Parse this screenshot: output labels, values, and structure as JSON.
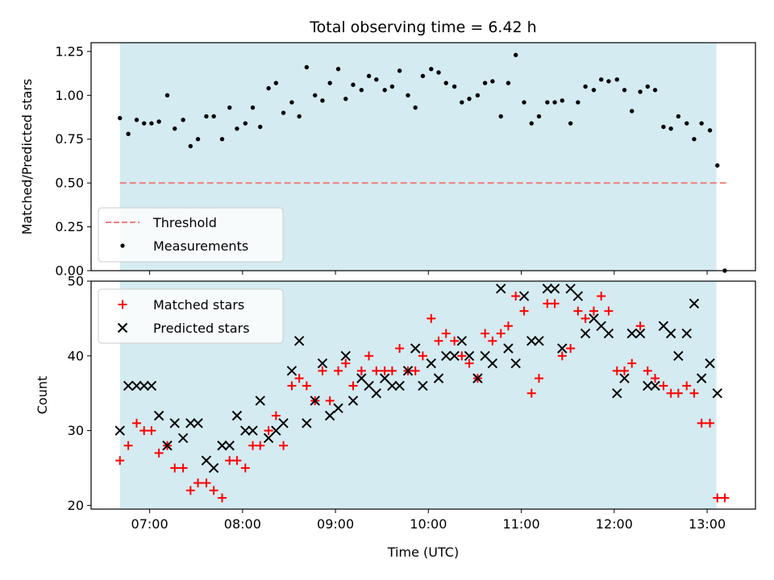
{
  "chart_data": {
    "type": "scatter",
    "title": "Total observing time = 6.42 h",
    "xlabel": "Time (UTC)",
    "x_ticks": [
      "07:00",
      "08:00",
      "09:00",
      "10:00",
      "11:00",
      "12:00",
      "13:00"
    ],
    "x_range_hours": [
      6.37,
      13.52
    ],
    "observing_window_hours": [
      6.68,
      13.1
    ],
    "shading_color": "#d4ebf1",
    "panels": [
      {
        "ylabel": "Matched/Predicted stars",
        "ylim": [
          0,
          1.3
        ],
        "y_ticks": [
          0.0,
          0.25,
          0.5,
          0.75,
          1.0,
          1.25
        ],
        "y_tick_labels": [
          "0.00",
          "0.25",
          "0.50",
          "0.75",
          "1.00",
          "1.25"
        ],
        "legend_position": "lower-left",
        "threshold": {
          "name": "Threshold",
          "value": 0.5,
          "color": "#f08080"
        },
        "series": [
          {
            "name": "Measurements",
            "marker": "dot",
            "color": "#000000",
            "x": [
              6.68,
              6.77,
              6.86,
              6.94,
              7.02,
              7.1,
              7.19,
              7.27,
              7.36,
              7.44,
              7.52,
              7.61,
              7.69,
              7.78,
              7.86,
              7.94,
              8.03,
              8.11,
              8.19,
              8.28,
              8.36,
              8.44,
              8.53,
              8.61,
              8.69,
              8.78,
              8.86,
              8.94,
              9.03,
              9.11,
              9.19,
              9.28,
              9.36,
              9.44,
              9.53,
              9.61,
              9.69,
              9.78,
              9.86,
              9.94,
              10.03,
              10.11,
              10.19,
              10.28,
              10.36,
              10.44,
              10.53,
              10.61,
              10.69,
              10.78,
              10.86,
              10.94,
              11.03,
              11.11,
              11.19,
              11.28,
              11.36,
              11.44,
              11.53,
              11.61,
              11.69,
              11.78,
              11.86,
              11.94,
              12.03,
              12.11,
              12.19,
              12.28,
              12.36,
              12.44,
              12.53,
              12.61,
              12.69,
              12.78,
              12.86,
              12.94,
              13.03,
              13.11,
              13.19
            ],
            "y": [
              0.87,
              0.78,
              0.86,
              0.84,
              0.84,
              0.85,
              1.0,
              0.81,
              0.86,
              0.71,
              0.75,
              0.88,
              0.88,
              0.75,
              0.93,
              0.81,
              0.84,
              0.93,
              0.82,
              1.04,
              1.07,
              0.9,
              0.96,
              0.88,
              1.16,
              1.0,
              0.97,
              1.07,
              1.15,
              0.98,
              1.06,
              1.03,
              1.11,
              1.09,
              1.03,
              1.05,
              1.14,
              1.0,
              0.93,
              1.11,
              1.15,
              1.13,
              1.07,
              1.05,
              0.96,
              0.98,
              1.0,
              1.07,
              1.08,
              0.88,
              1.07,
              1.23,
              0.96,
              0.84,
              0.88,
              0.96,
              0.96,
              0.97,
              0.84,
              0.96,
              1.05,
              1.03,
              1.09,
              1.08,
              1.09,
              1.03,
              0.91,
              1.02,
              1.05,
              1.03,
              0.82,
              0.81,
              0.88,
              0.84,
              0.75,
              0.84,
              0.8,
              0.6,
              0.0
            ]
          }
        ]
      },
      {
        "ylabel": "Count",
        "ylim": [
          19.5,
          50
        ],
        "y_ticks": [
          20,
          30,
          40,
          50
        ],
        "y_tick_labels": [
          "20",
          "30",
          "40",
          "50"
        ],
        "legend_position": "upper-left",
        "series": [
          {
            "name": "Matched stars",
            "marker": "plus",
            "color": "#ff0000",
            "x": [
              6.68,
              6.77,
              6.86,
              6.94,
              7.02,
              7.1,
              7.19,
              7.27,
              7.36,
              7.44,
              7.52,
              7.61,
              7.69,
              7.78,
              7.86,
              7.94,
              8.03,
              8.11,
              8.19,
              8.28,
              8.36,
              8.44,
              8.53,
              8.61,
              8.69,
              8.78,
              8.86,
              8.94,
              9.03,
              9.11,
              9.19,
              9.28,
              9.36,
              9.44,
              9.53,
              9.61,
              9.69,
              9.78,
              9.86,
              9.94,
              10.03,
              10.11,
              10.19,
              10.28,
              10.36,
              10.44,
              10.53,
              10.61,
              10.69,
              10.78,
              10.86,
              10.94,
              11.03,
              11.11,
              11.19,
              11.28,
              11.36,
              11.44,
              11.53,
              11.61,
              11.69,
              11.78,
              11.86,
              11.94,
              12.03,
              12.11,
              12.19,
              12.28,
              12.36,
              12.44,
              12.53,
              12.61,
              12.69,
              12.78,
              12.86,
              12.94,
              13.03,
              13.11,
              13.19
            ],
            "y": [
              26,
              28,
              31,
              30,
              30,
              27,
              28,
              25,
              25,
              22,
              23,
              23,
              22,
              21,
              26,
              26,
              25,
              28,
              28,
              30,
              32,
              28,
              36,
              37,
              36,
              34,
              38,
              34,
              38,
              39,
              36,
              38,
              40,
              38,
              38,
              38,
              41,
              38,
              38,
              40,
              45,
              42,
              43,
              42,
              40,
              39,
              37,
              43,
              42,
              43,
              44,
              48,
              46,
              35,
              37,
              47,
              47,
              40,
              41,
              46,
              45,
              46,
              48,
              46,
              38,
              38,
              39,
              44,
              38,
              37,
              36,
              35,
              35,
              36,
              35,
              31,
              31,
              21,
              21
            ]
          },
          {
            "name": "Predicted stars",
            "marker": "x",
            "color": "#000000",
            "x": [
              6.68,
              6.77,
              6.86,
              6.94,
              7.02,
              7.1,
              7.19,
              7.27,
              7.36,
              7.44,
              7.52,
              7.61,
              7.69,
              7.78,
              7.86,
              7.94,
              8.03,
              8.11,
              8.19,
              8.28,
              8.36,
              8.44,
              8.53,
              8.61,
              8.69,
              8.78,
              8.86,
              8.94,
              9.03,
              9.11,
              9.19,
              9.28,
              9.36,
              9.44,
              9.53,
              9.61,
              9.69,
              9.78,
              9.86,
              9.94,
              10.03,
              10.11,
              10.19,
              10.28,
              10.36,
              10.44,
              10.53,
              10.61,
              10.69,
              10.78,
              10.86,
              10.94,
              11.03,
              11.11,
              11.19,
              11.28,
              11.36,
              11.44,
              11.53,
              11.61,
              11.69,
              11.78,
              11.86,
              11.94,
              12.03,
              12.11,
              12.19,
              12.28,
              12.36,
              12.44,
              12.53,
              12.61,
              12.69,
              12.78,
              12.86,
              12.94,
              13.03,
              13.11
            ],
            "y": [
              30,
              36,
              36,
              36,
              36,
              32,
              28,
              31,
              29,
              31,
              31,
              26,
              25,
              28,
              28,
              32,
              30,
              30,
              34,
              29,
              30,
              31,
              38,
              42,
              31,
              34,
              39,
              32,
              33,
              40,
              34,
              37,
              36,
              35,
              37,
              36,
              36,
              38,
              41,
              36,
              39,
              37,
              40,
              40,
              42,
              40,
              37,
              40,
              39,
              49,
              41,
              39,
              48,
              42,
              42,
              49,
              49,
              41,
              49,
              48,
              43,
              45,
              44,
              43,
              35,
              37,
              43,
              43,
              36,
              36,
              44,
              43,
              40,
              43,
              47,
              37,
              39,
              35
            ]
          }
        ]
      }
    ]
  }
}
